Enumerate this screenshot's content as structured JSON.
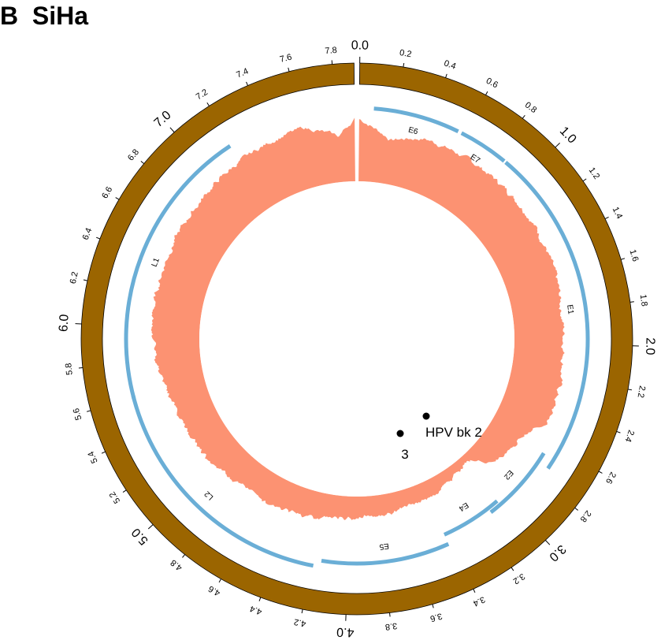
{
  "figure": {
    "panel_letter": "B",
    "sample_name": "SiHa"
  },
  "colors": {
    "genome_ring": "#9b6500",
    "gene_track": "#6aaed6",
    "coverage": "#fc9272",
    "breakpoint": "#000000"
  },
  "genome": {
    "length_kb": 7.9,
    "tick_labels": [
      "0.0",
      "0.2",
      "0.4",
      "0.6",
      "0.8",
      "1.0",
      "1.2",
      "1.4",
      "1.6",
      "1.8",
      "2.0",
      "2.2",
      "2.4",
      "2.6",
      "2.8",
      "3.0",
      "3.2",
      "3.4",
      "3.6",
      "3.8",
      "4.0",
      "4.2",
      "4.4",
      "4.6",
      "4.8",
      "5.0",
      "5.2",
      "5.4",
      "5.6",
      "5.8",
      "6.0",
      "6.2",
      "6.4",
      "6.6",
      "6.8",
      "7.0",
      "7.2",
      "7.4",
      "7.6",
      "7.8"
    ],
    "major_every_kb": 1.0
  },
  "genes": [
    {
      "name": "E6",
      "start_kb": 0.08,
      "end_kb": 0.56
    },
    {
      "name": "E7",
      "start_kb": 0.58,
      "end_kb": 0.86
    },
    {
      "name": "E1",
      "start_kb": 0.87,
      "end_kb": 2.72
    },
    {
      "name": "E2",
      "start_kb": 2.66,
      "end_kb": 3.12
    },
    {
      "name": "E4",
      "start_kb": 3.05,
      "end_kb": 3.42
    },
    {
      "name": "E5",
      "start_kb": 3.42,
      "end_kb": 4.15
    },
    {
      "name": "L2",
      "start_kb": 4.19,
      "end_kb": 5.62
    },
    {
      "name": "L1",
      "start_kb": 5.6,
      "end_kb": 7.18
    }
  ],
  "breakpoints": [
    {
      "label": "HPV bk 2"
    },
    {
      "label": "3"
    }
  ]
}
